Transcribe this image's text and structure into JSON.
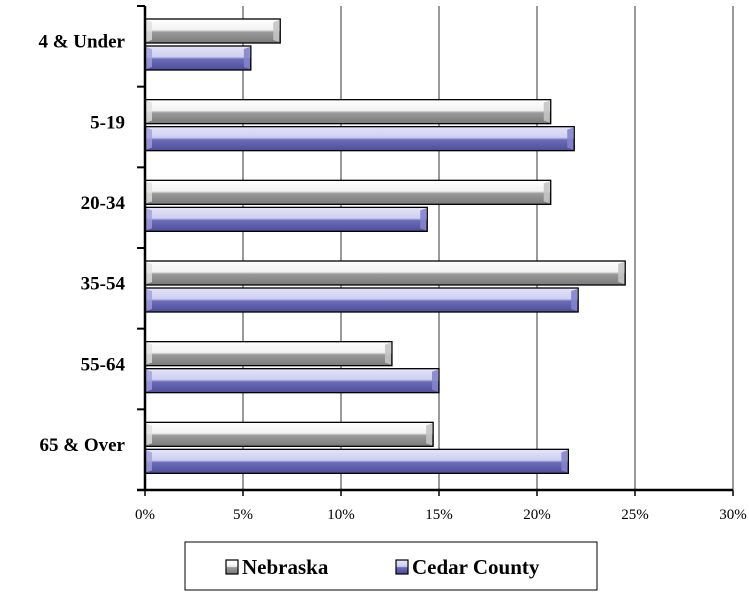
{
  "chart_data": {
    "type": "bar",
    "orientation": "horizontal",
    "categories": [
      "4 & Under",
      "5-19",
      "20-34",
      "35-54",
      "55-64",
      "65 & Over"
    ],
    "series": [
      {
        "name": "Nebraska",
        "values": [
          6.9,
          20.7,
          20.7,
          24.5,
          12.6,
          14.7
        ],
        "color": "#9a9a9a",
        "highlight": "#f2f2f2"
      },
      {
        "name": "Cedar County",
        "values": [
          5.4,
          21.9,
          14.4,
          22.1,
          15.0,
          21.6
        ],
        "color": "#6b6bb8",
        "highlight": "#cfcff0"
      }
    ],
    "xlim": [
      0,
      30
    ],
    "xticks": [
      0,
      5,
      10,
      15,
      20,
      25,
      30
    ],
    "xtick_labels": [
      "0%",
      "5%",
      "10%",
      "15%",
      "20%",
      "25%",
      "30%"
    ],
    "grid": "vertical",
    "legend_position": "bottom"
  }
}
